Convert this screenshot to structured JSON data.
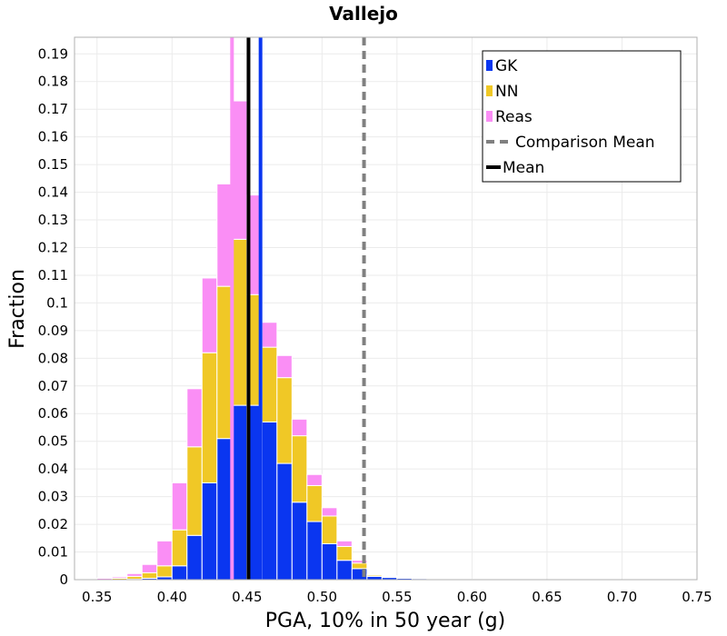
{
  "chart_data": {
    "type": "bar",
    "stacked": true,
    "title": "Vallejo",
    "xlabel": "PGA, 10% in 50 year (g)",
    "ylabel": "Fraction",
    "xlim": [
      0.335,
      0.75
    ],
    "ylim": [
      0,
      0.196
    ],
    "bin_width": 0.01,
    "grid": true,
    "legend_position": "top-right",
    "xticks": [
      "0.35",
      "0.40",
      "0.45",
      "0.50",
      "0.55",
      "0.60",
      "0.65",
      "0.70",
      "0.75"
    ],
    "yticks": [
      "0",
      "0.01",
      "0.02",
      "0.03",
      "0.04",
      "0.05",
      "0.06",
      "0.07",
      "0.08",
      "0.09",
      "0.1",
      "0.11",
      "0.12",
      "0.13",
      "0.14",
      "0.15",
      "0.16",
      "0.17",
      "0.18",
      "0.19"
    ],
    "bin_centers": [
      0.345,
      0.355,
      0.365,
      0.375,
      0.385,
      0.395,
      0.405,
      0.415,
      0.425,
      0.435,
      0.445,
      0.455,
      0.465,
      0.475,
      0.485,
      0.495,
      0.505,
      0.515,
      0.525,
      0.535,
      0.545,
      0.555,
      0.565,
      0.575,
      0.585,
      0.595,
      0.605
    ],
    "series": [
      {
        "name": "GK",
        "color": "#0a36f0",
        "values": [
          0,
          0,
          0,
          0.0002,
          0.0005,
          0.001,
          0.005,
          0.016,
          0.035,
          0.051,
          0.063,
          0.063,
          0.057,
          0.042,
          0.028,
          0.021,
          0.013,
          0.007,
          0.004,
          0.0012,
          0.0008,
          0.0005,
          0.0004,
          0.0003,
          0.0002,
          0.0001,
          0.0001
        ]
      },
      {
        "name": "NN",
        "color": "#f0c826",
        "values": [
          0,
          0,
          0.0005,
          0.001,
          0.002,
          0.004,
          0.013,
          0.032,
          0.047,
          0.055,
          0.06,
          0.04,
          0.027,
          0.031,
          0.024,
          0.013,
          0.01,
          0.005,
          0.002,
          0.0005,
          0.0003,
          0.0002,
          0.0001,
          0.0001,
          0.0001,
          0,
          0
        ]
      },
      {
        "name": "Reas",
        "color": "#fa8ef5",
        "values": [
          0.0003,
          0.0005,
          0.0005,
          0.001,
          0.003,
          0.009,
          0.017,
          0.021,
          0.027,
          0.037,
          0.05,
          0.036,
          0.009,
          0.008,
          0.006,
          0.004,
          0.003,
          0.002,
          0.001,
          0.0003,
          0.0003,
          0.0002,
          0.0002,
          0.0001,
          0.0001,
          0.0001,
          0
        ]
      }
    ],
    "lines": [
      {
        "name": "Comparison Mean",
        "x": 0.528,
        "color": "#808080",
        "style": "dashed"
      },
      {
        "name": "Mean",
        "x": 0.451,
        "color": "#000000",
        "style": "solid",
        "note": "NN"
      },
      {
        "name": "Mean",
        "x": 0.44,
        "color": "#fa8ef5",
        "style": "solid",
        "note": "Reas"
      },
      {
        "name": "Mean",
        "x": 0.459,
        "color": "#0a36f0",
        "style": "solid",
        "note": "GK"
      }
    ],
    "legend": [
      {
        "label": "GK",
        "kind": "swatch",
        "color": "#0a36f0"
      },
      {
        "label": "NN",
        "kind": "swatch",
        "color": "#f0c826"
      },
      {
        "label": "Reas",
        "kind": "swatch",
        "color": "#fa8ef5"
      },
      {
        "label": "Comparison Mean",
        "kind": "dashed",
        "color": "#808080"
      },
      {
        "label": "Mean",
        "kind": "solid",
        "color": "#000000"
      }
    ]
  }
}
